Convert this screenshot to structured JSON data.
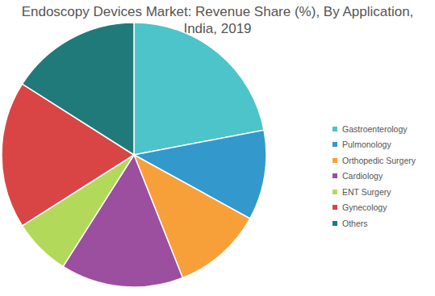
{
  "chart_data": {
    "type": "pie",
    "title": "Endoscopy Devices Market: Revenue Share (%), By Application, India, 2019",
    "categories": [
      "Gastroenterology",
      "Pulmonology",
      "Orthopedic Surgery",
      "Cardiology",
      "ENT Surgery",
      "Gynecology",
      "Others"
    ],
    "values": [
      22,
      11,
      11,
      15,
      7,
      18,
      16
    ],
    "colors": [
      "#4dc4c9",
      "#3399cc",
      "#f7a03a",
      "#9b4f9e",
      "#b3d95a",
      "#d94545",
      "#217a7a"
    ],
    "legend": "right"
  }
}
